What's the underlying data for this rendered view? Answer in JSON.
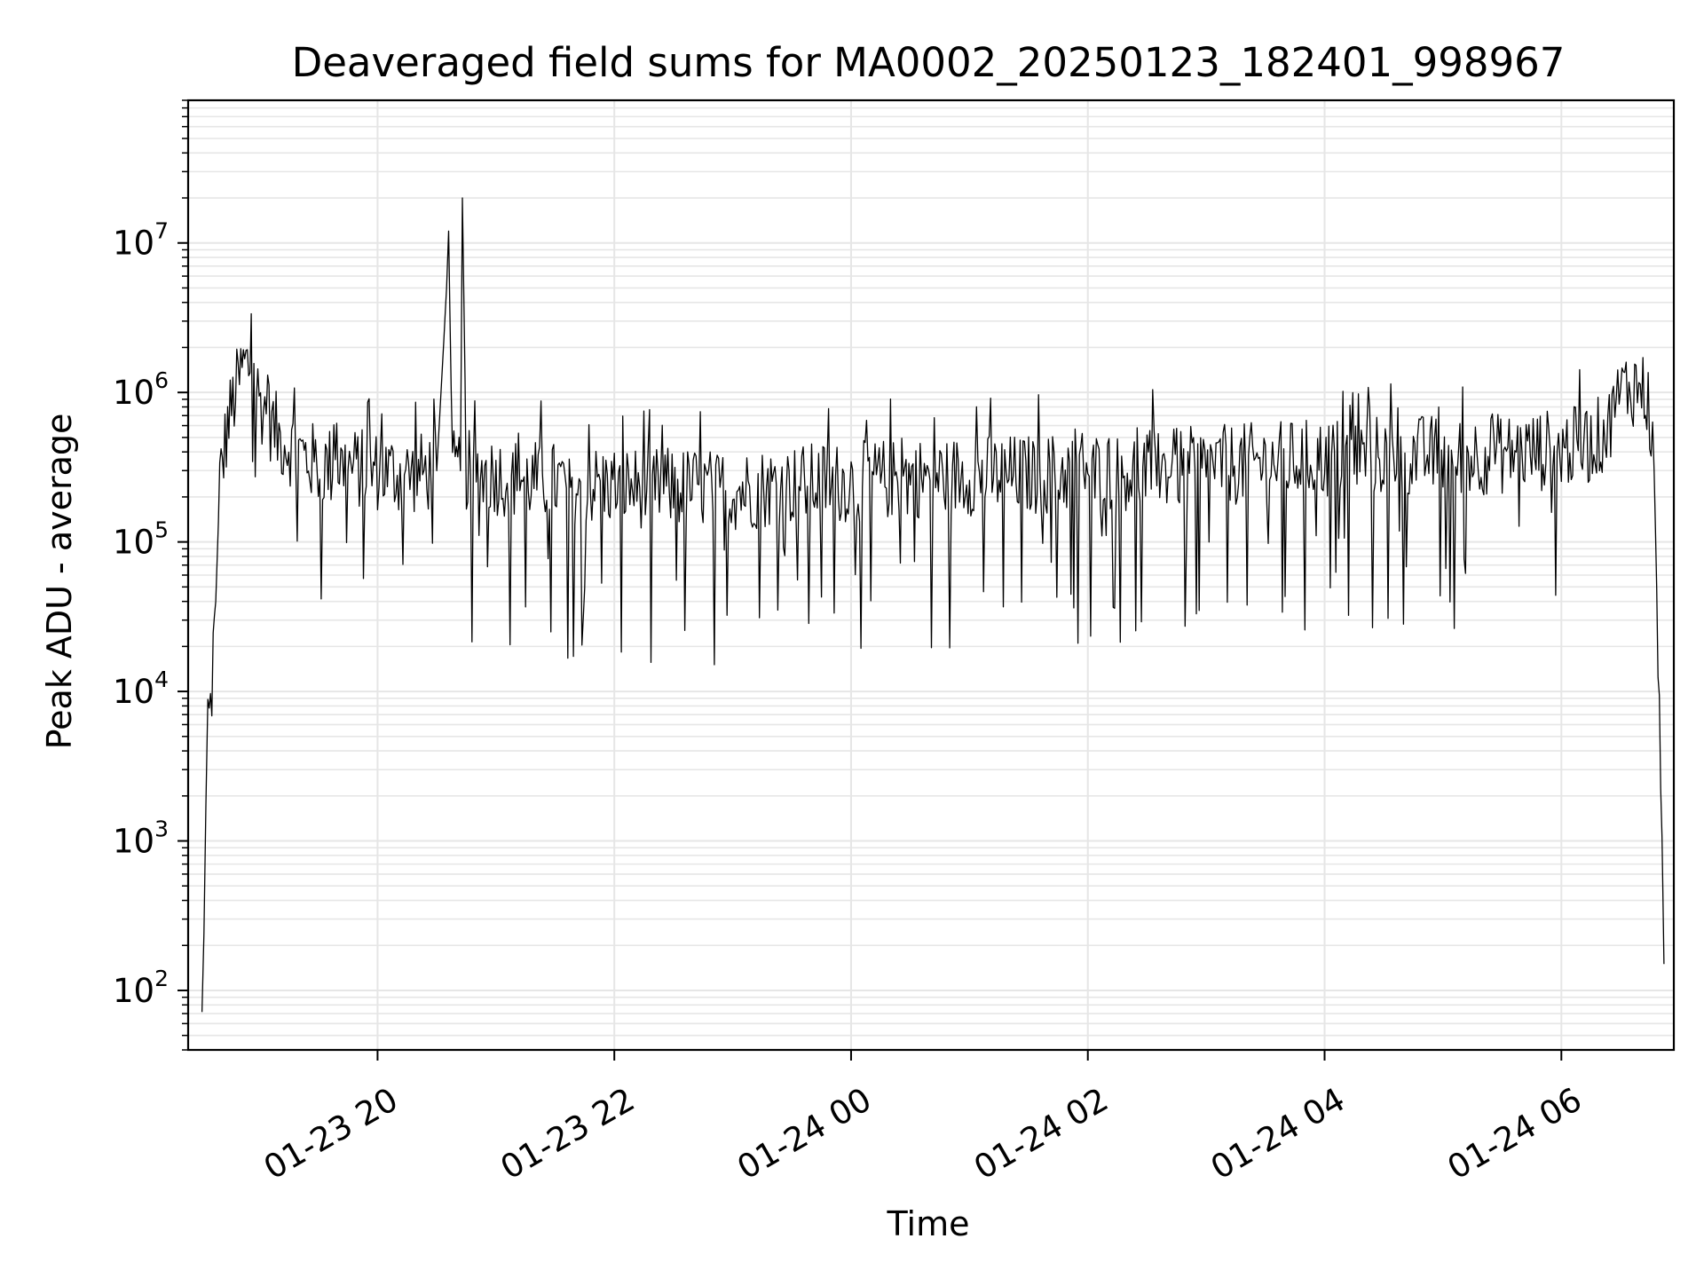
{
  "chart_data": {
    "type": "line",
    "title": "Deaveraged field sums for MA0002_20250123_182401_998967",
    "xlabel": "Time",
    "ylabel": "Peak ADU - average",
    "yscale": "log",
    "ylim": [
      40,
      90000000
    ],
    "xlim": [
      "2025-01-23 18:24",
      "2025-01-24 06:57"
    ],
    "grid": true,
    "line_color": "#000000",
    "grid_color": "#e6e6e6",
    "xticks": [
      {
        "value": "2025-01-23 20:00",
        "label": "01-23 20"
      },
      {
        "value": "2025-01-23 22:00",
        "label": "01-23 22"
      },
      {
        "value": "2025-01-24 00:00",
        "label": "01-24 00"
      },
      {
        "value": "2025-01-24 02:00",
        "label": "01-24 02"
      },
      {
        "value": "2025-01-24 04:00",
        "label": "01-24 04"
      },
      {
        "value": "2025-01-24 06:00",
        "label": "01-24 06"
      }
    ],
    "yticks": [
      {
        "value": 100,
        "base": "10",
        "exp": "2"
      },
      {
        "value": 1000,
        "base": "10",
        "exp": "3"
      },
      {
        "value": 10000,
        "base": "10",
        "exp": "4"
      },
      {
        "value": 100000,
        "base": "10",
        "exp": "5"
      },
      {
        "value": 1000000,
        "base": "10",
        "exp": "6"
      },
      {
        "value": 10000000,
        "base": "10",
        "exp": "7"
      }
    ],
    "series": [
      {
        "x": [
          "2025-01-23 18:31",
          "2025-01-23 18:32",
          "2025-01-23 18:33",
          "2025-01-23 18:34",
          "2025-01-23 18:36",
          "2025-01-23 18:38",
          "2025-01-23 18:40",
          "2025-01-23 18:44",
          "2025-01-23 18:48",
          "2025-01-23 18:52",
          "2025-01-23 18:56",
          "2025-01-23 19:00",
          "2025-01-23 19:10",
          "2025-01-23 19:20",
          "2025-01-23 19:30",
          "2025-01-23 19:40",
          "2025-01-23 19:50",
          "2025-01-23 20:00",
          "2025-01-23 20:15",
          "2025-01-23 20:30",
          "2025-01-23 20:35",
          "2025-01-23 20:36",
          "2025-01-23 20:38",
          "2025-01-23 20:42",
          "2025-01-23 20:43",
          "2025-01-23 20:45",
          "2025-01-23 21:00",
          "2025-01-23 21:15",
          "2025-01-23 21:30",
          "2025-01-23 21:45",
          "2025-01-23 22:00",
          "2025-01-23 22:15",
          "2025-01-23 22:30",
          "2025-01-23 22:45",
          "2025-01-23 23:00",
          "2025-01-23 23:15",
          "2025-01-23 23:30",
          "2025-01-23 23:45",
          "2025-01-24 00:00",
          "2025-01-24 00:15",
          "2025-01-24 00:30",
          "2025-01-24 00:45",
          "2025-01-24 01:00",
          "2025-01-24 01:15",
          "2025-01-24 01:30",
          "2025-01-24 01:45",
          "2025-01-24 02:00",
          "2025-01-24 02:15",
          "2025-01-24 02:30",
          "2025-01-24 02:45",
          "2025-01-24 03:00",
          "2025-01-24 03:15",
          "2025-01-24 03:30",
          "2025-01-24 03:45",
          "2025-01-24 04:00",
          "2025-01-24 04:15",
          "2025-01-24 04:30",
          "2025-01-24 04:45",
          "2025-01-24 05:00",
          "2025-01-24 05:15",
          "2025-01-24 05:30",
          "2025-01-24 05:45",
          "2025-01-24 06:00",
          "2025-01-24 06:15",
          "2025-01-24 06:25",
          "2025-01-24 06:30",
          "2025-01-24 06:35",
          "2025-01-24 06:40",
          "2025-01-24 06:44",
          "2025-01-24 06:47",
          "2025-01-24 06:49",
          "2025-01-24 06:51",
          "2025-01-24 06:52"
        ],
        "y": [
          60,
          300,
          1500,
          5000,
          10000,
          40000,
          250000,
          600000,
          1000000,
          1500000,
          1500000,
          900000,
          500000,
          400000,
          320000,
          320000,
          310000,
          300000,
          280000,
          300000,
          5000000,
          12000000,
          300000,
          300000,
          20000000,
          300000,
          280000,
          260000,
          250000,
          240000,
          240000,
          230000,
          230000,
          230000,
          220000,
          230000,
          240000,
          250000,
          250000,
          260000,
          270000,
          270000,
          280000,
          280000,
          280000,
          290000,
          290000,
          300000,
          300000,
          310000,
          320000,
          330000,
          340000,
          350000,
          360000,
          370000,
          380000,
          380000,
          380000,
          380000,
          390000,
          400000,
          420000,
          450000,
          600000,
          1000000,
          1100000,
          1100000,
          900000,
          300000,
          20000,
          800,
          150
        ]
      }
    ]
  }
}
